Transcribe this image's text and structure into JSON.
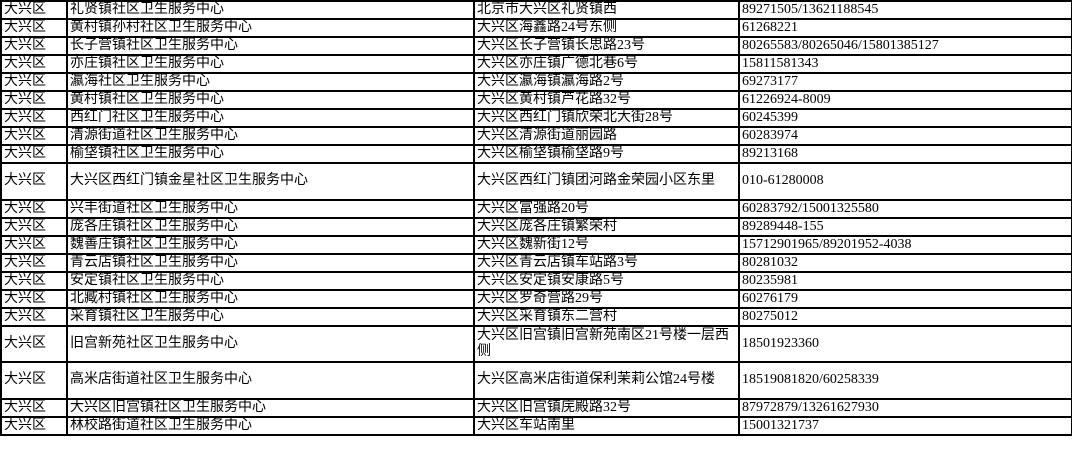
{
  "rows": [
    {
      "district": "大兴区",
      "name": "礼贤镇社区卫生服务中心",
      "address": "北京市大兴区礼贤镇西",
      "phone": "89271505/13621188545"
    },
    {
      "district": "大兴区",
      "name": "黄村镇孙村社区卫生服务中心",
      "address": "大兴区海鑫路24号东侧",
      "phone": "61268221"
    },
    {
      "district": "大兴区",
      "name": "长子营镇社区卫生服务中心",
      "address": "大兴区长子营镇长思路23号",
      "phone": "80265583/80265046/15801385127"
    },
    {
      "district": "大兴区",
      "name": "亦庄镇社区卫生服务中心",
      "address": "大兴区亦庄镇广德北巷6号",
      "phone": "15811581343"
    },
    {
      "district": "大兴区",
      "name": "瀛海社区卫生服务中心",
      "address": "大兴区瀛海镇瀛海路2号",
      "phone": "69273177"
    },
    {
      "district": "大兴区",
      "name": "黄村镇社区卫生服务中心",
      "address": "大兴区黄村镇芦花路32号",
      "phone": "61226924-8009"
    },
    {
      "district": "大兴区",
      "name": "西红门社区卫生服务中心",
      "address": "大兴区西红门镇欣荣北大街28号",
      "phone": "60245399"
    },
    {
      "district": "大兴区",
      "name": "清源街道社区卫生服务中心",
      "address": "大兴区清源街道丽园路",
      "phone": "60283974"
    },
    {
      "district": "大兴区",
      "name": "榆垡镇社区卫生服务中心",
      "address": "大兴区榆垡镇榆垡路9号",
      "phone": "89213168"
    },
    {
      "district": "大兴区",
      "name": "大兴区西红门镇金星社区卫生服务中心",
      "address": "大兴区西红门镇团河路金荣园小区东里",
      "phone": "010-61280008",
      "tall": true
    },
    {
      "district": "大兴区",
      "name": "兴丰街道社区卫生服务中心",
      "address": "大兴区富强路20号",
      "phone": "60283792/15001325580"
    },
    {
      "district": "大兴区",
      "name": "庞各庄镇社区卫生服务中心",
      "address": "大兴区庞各庄镇繁荣村",
      "phone": "89289448-155"
    },
    {
      "district": "大兴区",
      "name": "魏善庄镇社区卫生服务中心",
      "address": "大兴区魏新街12号",
      "phone": "15712901965/89201952-4038"
    },
    {
      "district": "大兴区",
      "name": "青云店镇社区卫生服务中心",
      "address": "大兴区青云店镇车站路3号",
      "phone": "80281032"
    },
    {
      "district": "大兴区",
      "name": "安定镇社区卫生服务中心",
      "address": "大兴区安定镇安康路5号",
      "phone": "80235981"
    },
    {
      "district": "大兴区",
      "name": "北臧村镇社区卫生服务中心",
      "address": "大兴区罗奇营路29号",
      "phone": "60276179"
    },
    {
      "district": "大兴区",
      "name": "采育镇社区卫生服务中心",
      "address": "大兴区采育镇东二营村",
      "phone": "80275012"
    },
    {
      "district": "大兴区",
      "name": "旧宫新苑社区卫生服务中心",
      "address": "大兴区旧宫镇旧宫新苑南区21号楼一层西侧",
      "phone": "18501923360",
      "tall": true
    },
    {
      "district": "大兴区",
      "name": "高米店街道社区卫生服务中心",
      "address": "大兴区高米店街道保利茉莉公馆24号楼",
      "phone": "18519081820/60258339",
      "tall": true
    },
    {
      "district": "大兴区",
      "name": "大兴区旧宫镇社区卫生服务中心",
      "address": "大兴区旧宫镇庑殿路32号",
      "phone": "87972879/13261627930"
    },
    {
      "district": "大兴区",
      "name": "林校路街道社区卫生服务中心",
      "address": "大兴区车站南里",
      "phone": "15001321737"
    }
  ]
}
